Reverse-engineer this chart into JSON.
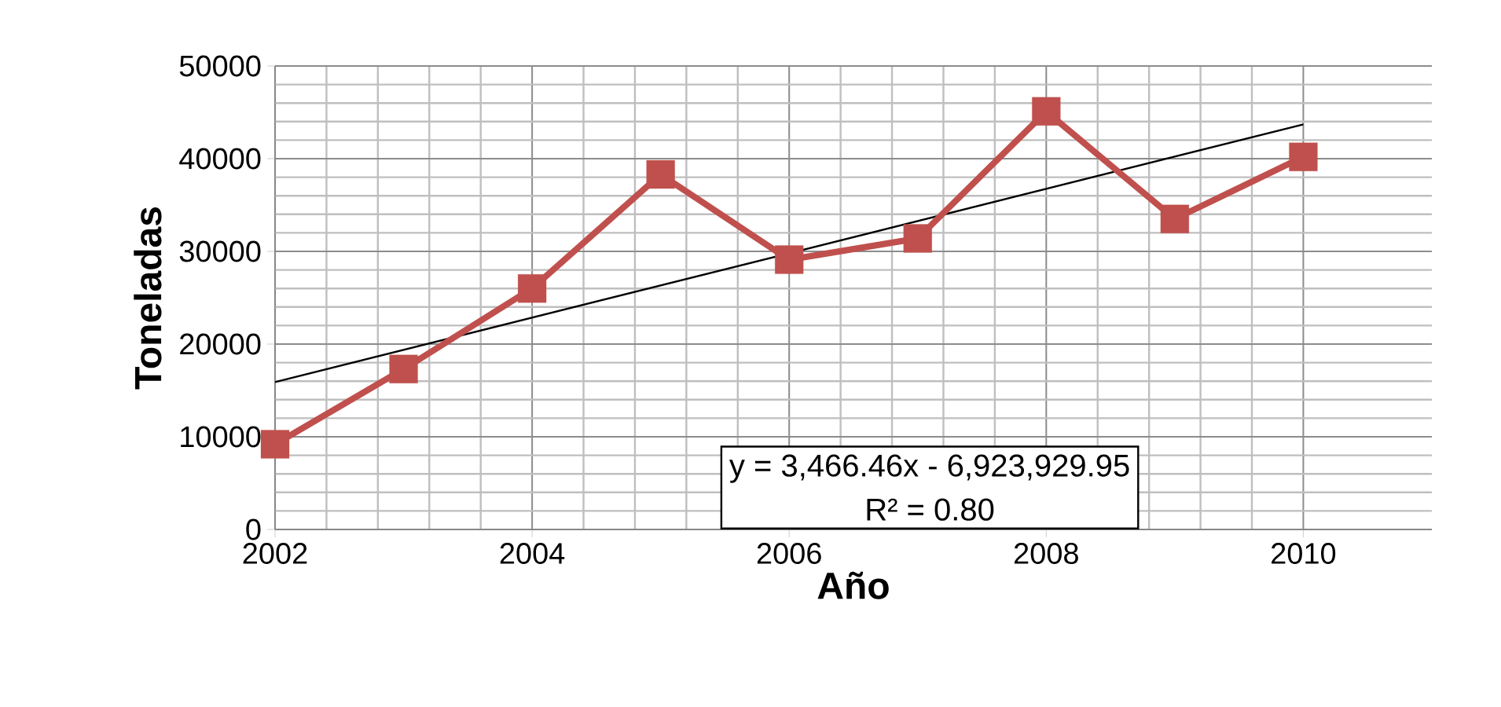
{
  "chart_data": {
    "type": "line",
    "xlabel": "Año",
    "ylabel": "Toneladas",
    "x": [
      2002,
      2003,
      2004,
      2005,
      2006,
      2007,
      2008,
      2009,
      2010
    ],
    "series": [
      {
        "color": "#c0504d",
        "marker": "square",
        "values": [
          9200,
          17300,
          26000,
          38300,
          29100,
          31400,
          45100,
          33500,
          40200
        ]
      },
      {
        "type": "line",
        "color": "#000000",
        "marker": "none",
        "x": [
          2002,
          2010
        ],
        "values": [
          15900,
          43700
        ]
      }
    ],
    "xlim": [
      2002,
      2011
    ],
    "ylim": [
      0,
      50000
    ],
    "xticks": [
      2002,
      2004,
      2006,
      2008,
      2010
    ],
    "yticks": [
      0,
      10000,
      20000,
      30000,
      40000,
      50000
    ],
    "grid": true,
    "annotations": [
      "y = 3,466.46x - 6,923,929.95",
      "R² = 0.80"
    ]
  }
}
